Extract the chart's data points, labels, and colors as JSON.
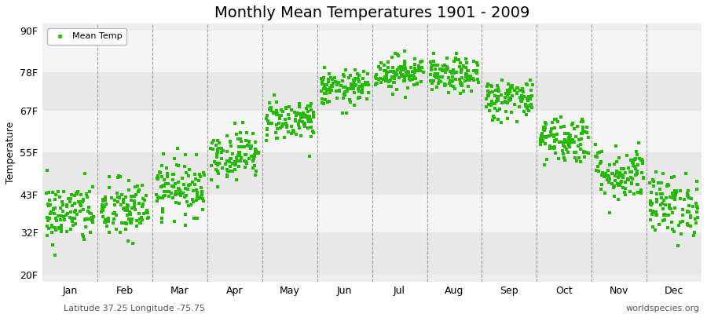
{
  "title": "Monthly Mean Temperatures 1901 - 2009",
  "ylabel": "Temperature",
  "xlabel": "",
  "footer_left": "Latitude 37.25 Longitude -75.75",
  "footer_right": "worldspecies.org",
  "legend_label": "Mean Temp",
  "dot_color": "#22bb00",
  "dot_size": 7,
  "y_ticks": [
    20,
    32,
    43,
    55,
    67,
    78,
    90
  ],
  "y_tick_labels": [
    "20F",
    "32F",
    "43F",
    "55F",
    "67F",
    "78F",
    "90F"
  ],
  "ylim": [
    18,
    92
  ],
  "months": [
    "Jan",
    "Feb",
    "Mar",
    "Apr",
    "May",
    "Jun",
    "Jul",
    "Aug",
    "Sep",
    "Oct",
    "Nov",
    "Dec"
  ],
  "mean_temps": [
    37.5,
    38.5,
    45.0,
    54.5,
    64.5,
    73.5,
    78.0,
    77.0,
    70.5,
    59.0,
    49.0,
    40.0
  ],
  "std_temps": [
    4.5,
    4.5,
    4.0,
    3.5,
    3.0,
    2.5,
    2.5,
    2.5,
    3.0,
    3.5,
    4.0,
    4.5
  ],
  "n_years": 109,
  "band_colors": [
    "#e8e8e8",
    "#f5f5f5"
  ],
  "plot_bg": "#eeeeee",
  "grid_color": "#666666",
  "title_fontsize": 14,
  "axis_fontsize": 9,
  "tick_fontsize": 9,
  "footer_fontsize": 8,
  "figsize": [
    9.0,
    4.0
  ],
  "dpi": 100
}
